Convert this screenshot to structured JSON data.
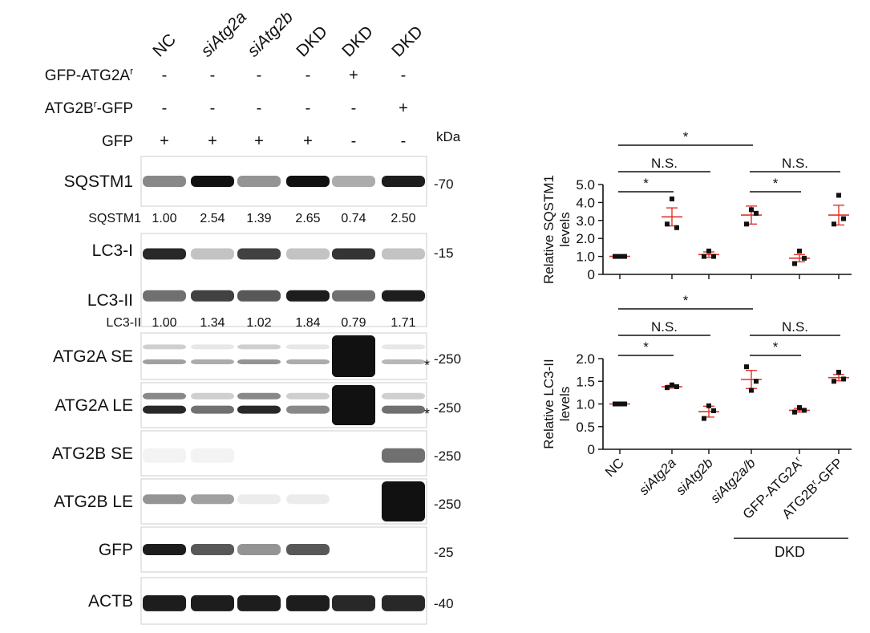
{
  "lanes": [
    "NC",
    "siAtg2a",
    "siAtg2b",
    "DKD",
    "DKD",
    "DKD"
  ],
  "lanes_italic": [
    false,
    true,
    true,
    false,
    false,
    false
  ],
  "treatments": [
    {
      "label": "GFP-ATG2A",
      "sup": "r",
      "signs": [
        "-",
        "-",
        "-",
        "-",
        "+",
        "-"
      ]
    },
    {
      "label": "ATG2B",
      "sup": "r",
      "label_suffix": "-GFP",
      "signs": [
        "-",
        "-",
        "-",
        "-",
        "-",
        "+"
      ]
    },
    {
      "label": "GFP",
      "sup": "",
      "label_suffix": "",
      "signs": [
        "+",
        "+",
        "+",
        "+",
        "-",
        "-"
      ]
    }
  ],
  "kda_label": "kDa",
  "blots": [
    {
      "name": "SQSTM1",
      "marker": "-70"
    },
    {
      "name": "LC3-I",
      "marker": "-15"
    },
    {
      "name": "LC3-II",
      "marker": ""
    },
    {
      "name": "ATG2A SE",
      "marker": "-250"
    },
    {
      "name": "ATG2A LE",
      "marker": "-250"
    },
    {
      "name": "ATG2B SE",
      "marker": "-250"
    },
    {
      "name": "ATG2B LE",
      "marker": "-250"
    },
    {
      "name": "GFP",
      "marker": "-25"
    },
    {
      "name": "ACTB",
      "marker": "-40"
    }
  ],
  "quant_rows": [
    {
      "label": "SQSTM1",
      "values": [
        "1.00",
        "2.54",
        "1.39",
        "2.65",
        "0.74",
        "2.50"
      ]
    },
    {
      "label": "LC3-II",
      "values": [
        "1.00",
        "1.34",
        "1.02",
        "1.84",
        "0.79",
        "1.71"
      ]
    }
  ],
  "nonspecific_mark": "*",
  "colors": {
    "mean_bar": "#e0342b",
    "mark": "#e0342b",
    "point": "#111111"
  },
  "chart_data": [
    {
      "type": "scatter",
      "ylabel": "Relative SQSTM1 levels",
      "ylim": [
        0,
        5
      ],
      "yticks": [
        "5.0",
        "4.0",
        "3.0",
        "2.0",
        "1.0",
        "0"
      ],
      "categories": [
        "NC",
        "siAtg2a",
        "siAtg2b",
        "siAtg2a/b",
        "GFP-ATG2Ar",
        "ATG2Br-GFP"
      ],
      "points": [
        [
          1.0,
          1.0,
          1.0
        ],
        [
          2.8,
          4.2,
          2.6
        ],
        [
          1.0,
          1.3,
          1.0
        ],
        [
          2.8,
          3.6,
          3.4
        ],
        [
          0.6,
          1.3,
          0.9
        ],
        [
          2.8,
          4.4,
          3.1
        ]
      ],
      "mean": [
        1.0,
        3.2,
        1.1,
        3.3,
        0.9,
        3.3
      ],
      "sem": [
        0.02,
        0.5,
        0.15,
        0.5,
        0.2,
        0.55
      ],
      "significance": [
        {
          "a": 0,
          "b": 3,
          "label": "*"
        },
        {
          "a": 0,
          "b": 2,
          "label": "N.S."
        },
        {
          "a": 3,
          "b": 5,
          "label": "N.S."
        },
        {
          "a": 0,
          "b": 1,
          "label": "*"
        },
        {
          "a": 3,
          "b": 4,
          "label": "*"
        }
      ]
    },
    {
      "type": "scatter",
      "ylabel": "Relative LC3-II levels",
      "ylim": [
        0,
        2
      ],
      "yticks": [
        "2.0",
        "1.5",
        "1.0",
        "0.5",
        "0"
      ],
      "categories": [
        "NC",
        "siAtg2a",
        "siAtg2b",
        "siAtg2a/b",
        "GFP-ATG2Ar",
        "ATG2Br-GFP"
      ],
      "points": [
        [
          1.0,
          1.0,
          1.0
        ],
        [
          1.36,
          1.42,
          1.38
        ],
        [
          0.68,
          0.96,
          0.85
        ],
        [
          1.82,
          1.3,
          1.5
        ],
        [
          0.82,
          0.92,
          0.86
        ],
        [
          1.5,
          1.7,
          1.55
        ]
      ],
      "mean": [
        1.0,
        1.38,
        0.83,
        1.54,
        0.86,
        1.58
      ],
      "sem": [
        0.02,
        0.03,
        0.12,
        0.2,
        0.04,
        0.07
      ],
      "significance": [
        {
          "a": 0,
          "b": 3,
          "label": "*"
        },
        {
          "a": 0,
          "b": 2,
          "label": "N.S."
        },
        {
          "a": 3,
          "b": 5,
          "label": "N.S."
        },
        {
          "a": 0,
          "b": 1,
          "label": "*"
        },
        {
          "a": 3,
          "b": 4,
          "label": "*"
        }
      ]
    }
  ],
  "x_labels": [
    {
      "text": "NC",
      "italic": false,
      "sup": "",
      "suffix": ""
    },
    {
      "text": "siAtg2a",
      "italic": true,
      "sup": "",
      "suffix": ""
    },
    {
      "text": "siAtg2b",
      "italic": true,
      "sup": "",
      "suffix": ""
    },
    {
      "text": "siAtg2a/b",
      "italic": true,
      "sup": "",
      "suffix": ""
    },
    {
      "text": "GFP-ATG2A",
      "italic": false,
      "sup": "r",
      "suffix": ""
    },
    {
      "text": "ATG2B",
      "italic": false,
      "sup": "r",
      "suffix": "-GFP"
    }
  ],
  "group_label": "DKD"
}
